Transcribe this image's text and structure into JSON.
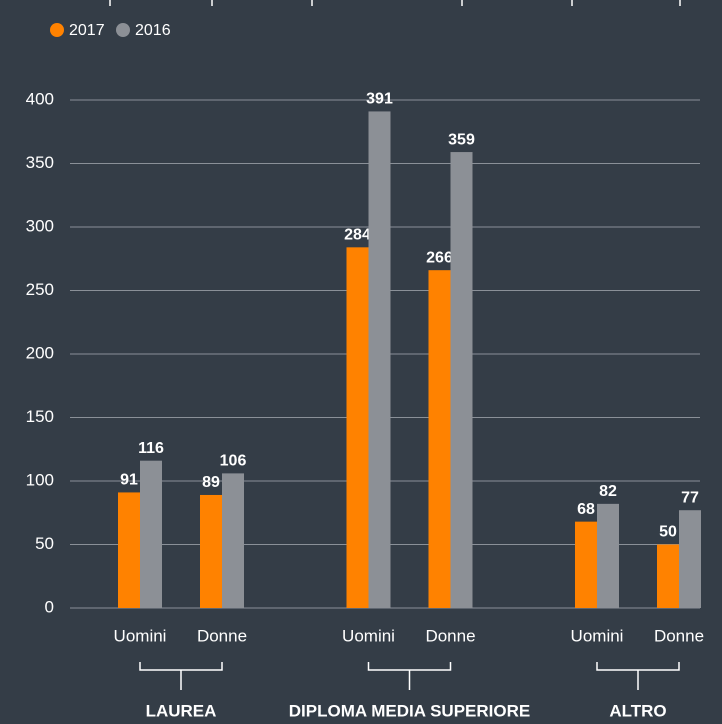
{
  "chart_data": {
    "type": "bar",
    "groups": [
      "LAUREA",
      "DIPLOMA MEDIA SUPERIORE",
      "ALTRO"
    ],
    "categories": [
      "Uomini",
      "Donne",
      "Uomini",
      "Donne",
      "Uomini",
      "Donne"
    ],
    "series": [
      {
        "name": "2017",
        "color": "#ff8200",
        "values": [
          91,
          89,
          284,
          266,
          68,
          50
        ]
      },
      {
        "name": "2016",
        "color": "#8c9096",
        "values": [
          116,
          106,
          391,
          359,
          82,
          77
        ]
      }
    ],
    "ylim": [
      0,
      400
    ],
    "yticks": [
      0,
      50,
      100,
      150,
      200,
      250,
      300,
      350,
      400
    ],
    "grid": true
  }
}
